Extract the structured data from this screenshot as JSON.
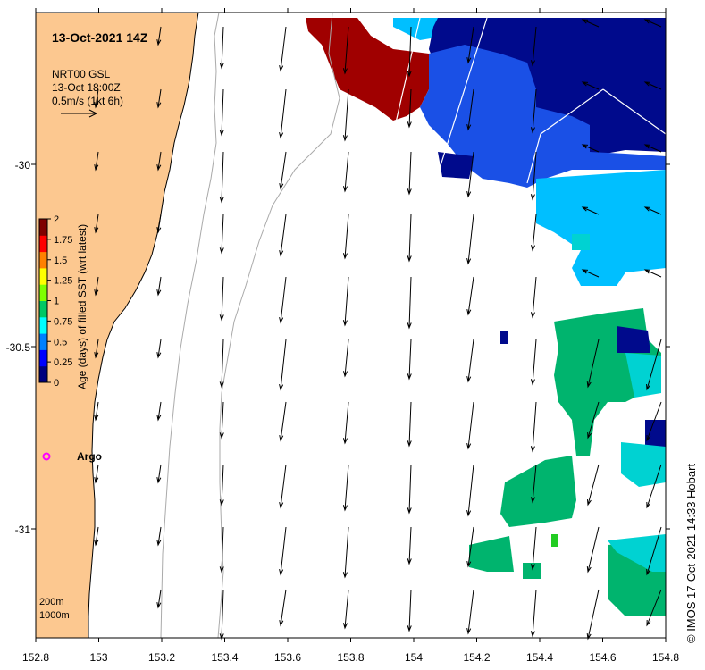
{
  "map": {
    "title": "13-Oct-2021 14Z",
    "legend_lines": [
      "NRT00 GSL",
      "13-Oct 18:00Z",
      "0.5m/s (1kt 6h)"
    ],
    "credit": "© IMOS 17-Oct-2021 14:33 Hobart",
    "float_label": "Argo",
    "depth_labels": [
      "200m",
      "1000m"
    ],
    "x_ticks": [
      "152.8",
      "153",
      "153.2",
      "153.4",
      "153.6",
      "153.8",
      "154",
      "154.2",
      "154.4",
      "154.6",
      "154.8"
    ],
    "y_ticks": [
      "-30",
      "-30.5",
      "-31"
    ],
    "colorbar": {
      "title": "Age (days) of filled SST (wrt latest)",
      "ticks": [
        "2",
        "1.75",
        "1.5",
        "1.25",
        "1",
        "0.75",
        "0.5",
        "0.25",
        "0"
      ],
      "colors": [
        "#00007f",
        "#0000ff",
        "#0080ff",
        "#00ffff",
        "#00c864",
        "#7fff00",
        "#ffff00",
        "#ff8000",
        "#ff0000",
        "#7f0000"
      ]
    },
    "colors": {
      "land": "#fcc890",
      "dark_red": "#a00000",
      "navy": "#000a8c",
      "blue": "#1a50e6",
      "light_blue": "#00bfff",
      "cyan": "#00d2d2",
      "green": "#00b46e",
      "float_marker": "#ff00ff"
    }
  }
}
